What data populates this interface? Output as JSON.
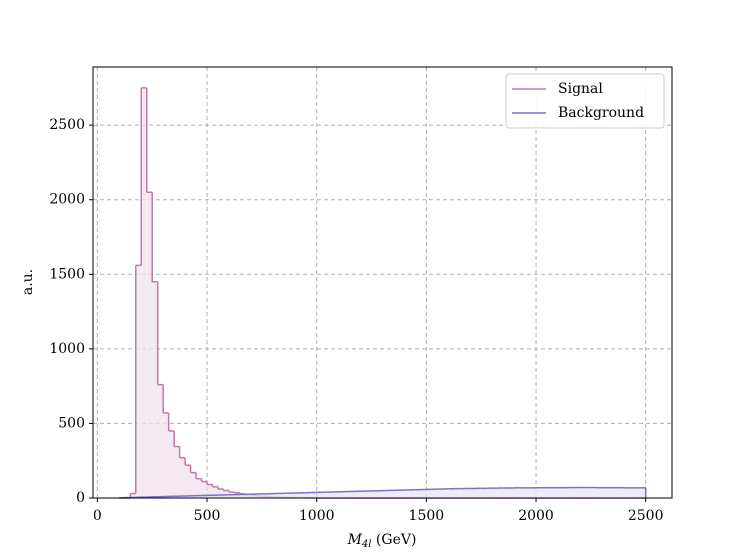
{
  "chart_data": {
    "type": "histogram",
    "xlabel": "M",
    "xlabel_sub": "4l",
    "xlabel_unit": "(GeV)",
    "ylabel": "a.u.",
    "bins": [
      100,
      125,
      150,
      175,
      200,
      225,
      250,
      275,
      300,
      325,
      350,
      375,
      400,
      425,
      450,
      475,
      500,
      525,
      550,
      575,
      600,
      625,
      650,
      675,
      700,
      725,
      750,
      775,
      800,
      825,
      850,
      875,
      900,
      925,
      950,
      975,
      1000,
      1025,
      1050,
      1075,
      1100,
      1125,
      1150,
      1175,
      1200,
      1225,
      1250,
      1275,
      1300,
      1325,
      1350,
      1375,
      1400,
      1425,
      1450,
      1475,
      1500,
      1525,
      1550,
      1575,
      1600,
      1625,
      1650,
      1675,
      1700,
      1725,
      1750,
      1775,
      1800,
      1825,
      1850,
      1875,
      1900,
      1925,
      1950,
      1975,
      2000,
      2025,
      2050,
      2075,
      2100,
      2125,
      2150,
      2175,
      2200,
      2225,
      2250,
      2275,
      2300,
      2325,
      2350,
      2375,
      2400,
      2425,
      2450,
      2475,
      2500
    ],
    "series": [
      {
        "name": "Signal",
        "color": "#c07aa8",
        "fill": "#f1e1ec",
        "values": [
          0,
          0,
          30,
          1560,
          2750,
          2050,
          1450,
          760,
          570,
          450,
          345,
          270,
          220,
          170,
          130,
          110,
          90,
          75,
          60,
          50,
          40,
          35,
          28,
          22,
          18,
          14,
          11,
          9,
          7,
          5,
          4,
          3,
          2,
          2,
          1,
          1,
          0,
          0,
          0,
          0,
          0,
          0,
          0,
          0,
          0,
          0,
          0,
          0,
          0,
          0,
          0,
          0,
          0,
          0,
          0,
          0,
          0,
          0,
          0,
          0,
          0,
          0,
          0,
          0,
          0,
          0,
          0,
          0,
          0,
          0,
          0,
          0,
          0,
          0,
          0,
          0,
          0,
          0,
          0,
          0,
          0,
          0,
          0,
          0,
          0,
          0,
          0,
          0,
          0,
          0,
          0,
          0,
          0,
          0,
          0,
          0
        ]
      },
      {
        "name": "Background",
        "color": "#7b70c8",
        "fill": "#e7e5f5",
        "values": [
          2,
          3,
          4,
          5,
          6,
          7,
          8,
          9,
          10,
          11,
          12,
          13,
          14,
          15,
          16,
          17,
          18,
          19,
          20,
          21,
          22,
          23,
          24,
          25,
          26,
          27,
          28,
          29,
          30,
          31,
          32,
          33,
          34,
          35,
          36,
          37,
          38,
          39,
          40,
          41,
          42,
          43,
          44,
          45,
          46,
          47,
          48,
          49,
          50,
          51,
          52,
          53,
          54,
          55,
          56,
          57,
          58,
          59,
          60,
          61,
          62,
          63,
          63,
          64,
          64,
          65,
          65,
          66,
          66,
          67,
          67,
          67,
          68,
          68,
          68,
          68,
          69,
          69,
          69,
          69,
          69,
          69,
          70,
          70,
          70,
          70,
          70,
          69,
          69,
          69,
          69,
          69,
          68,
          68,
          68,
          68
        ]
      }
    ],
    "xlim": [
      -20,
      2620
    ],
    "ylim": [
      0,
      2890
    ],
    "xticks": [
      0,
      500,
      1000,
      1500,
      2000,
      2500
    ],
    "yticks": [
      0,
      500,
      1000,
      1500,
      2000,
      2500
    ],
    "grid": true,
    "legend": "upper right"
  }
}
